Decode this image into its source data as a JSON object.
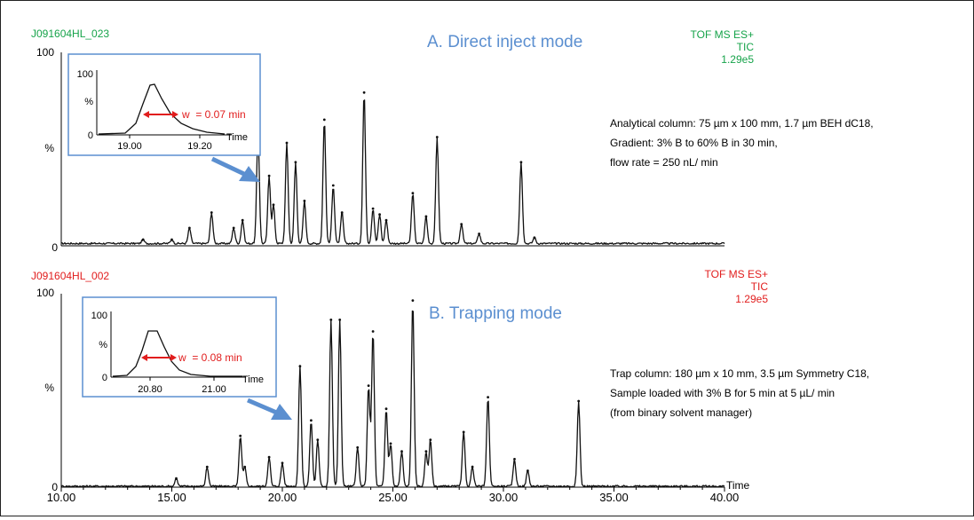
{
  "chart_data": [
    {
      "type": "line",
      "sample_id": "J091604HL_023",
      "mode_label": "A. Direct inject mode",
      "detector": [
        "TOF MS ES+",
        "TIC",
        "1.29e5"
      ],
      "header_color": "#16a34a",
      "title_color": "#5b8fd0",
      "ylabels": {
        "top": "100",
        "mid": "%",
        "zero": "0"
      },
      "conditions": [
        "Analytical column: 75 µm x 100 mm, 1.7 µm BEH dC18,",
        "Gradient: 3% B to 60% B in 30 min,",
        "flow rate = 250 nL/ min"
      ],
      "xlim": [
        10,
        40
      ],
      "ylim": [
        0,
        100
      ],
      "baseline": 1.2,
      "peaks": [
        [
          13.7,
          2
        ],
        [
          15.0,
          2
        ],
        [
          15.8,
          8
        ],
        [
          16.8,
          16
        ],
        [
          17.8,
          8
        ],
        [
          18.2,
          12
        ],
        [
          18.9,
          58
        ],
        [
          19.4,
          35
        ],
        [
          19.6,
          20
        ],
        [
          20.2,
          52
        ],
        [
          20.6,
          42
        ],
        [
          21.0,
          22
        ],
        [
          21.9,
          64
        ],
        [
          22.3,
          30
        ],
        [
          22.7,
          16
        ],
        [
          23.7,
          78
        ],
        [
          24.1,
          18
        ],
        [
          24.4,
          15
        ],
        [
          24.7,
          12
        ],
        [
          25.9,
          26
        ],
        [
          26.5,
          14
        ],
        [
          27.0,
          55
        ],
        [
          28.1,
          10
        ],
        [
          28.9,
          5
        ],
        [
          30.8,
          42
        ],
        [
          31.4,
          3
        ]
      ],
      "inset": {
        "ylabels": [
          "100",
          "%",
          "0"
        ],
        "xticks": [
          "19.00",
          "19.20"
        ],
        "xlabel": "Time",
        "width_label": "w  = 0.07 min"
      }
    },
    {
      "type": "line",
      "sample_id": "J091604HL_002",
      "mode_label": "B. Trapping mode",
      "detector": [
        "TOF MS ES+",
        "TIC",
        "1.29e5"
      ],
      "header_color": "#e11d1d",
      "title_color": "#5b8fd0",
      "ylabels": {
        "top": "100",
        "mid": "%",
        "zero": "0"
      },
      "conditions": [
        "Trap column: 180 µm x 10 mm, 3.5 µm Symmetry C18,",
        "Sample loaded with 3% B for 5 min at 5 µL/ min",
        "(from binary solvent manager)"
      ],
      "xlim": [
        10,
        40
      ],
      "ylim": [
        0,
        100
      ],
      "baseline": 0.5,
      "xticks": [
        "10.00",
        "15.00",
        "20.00",
        "25.00",
        "30.00",
        "35.00",
        "40.00"
      ],
      "xlabel": "Time",
      "peaks": [
        [
          15.2,
          4
        ],
        [
          16.6,
          10
        ],
        [
          18.1,
          26
        ],
        [
          18.3,
          10
        ],
        [
          19.4,
          15
        ],
        [
          20.0,
          12
        ],
        [
          20.8,
          62
        ],
        [
          21.3,
          34
        ],
        [
          21.6,
          24
        ],
        [
          22.2,
          86
        ],
        [
          22.6,
          86
        ],
        [
          23.4,
          20
        ],
        [
          23.9,
          52
        ],
        [
          24.1,
          80
        ],
        [
          24.7,
          40
        ],
        [
          24.9,
          22
        ],
        [
          25.4,
          18
        ],
        [
          25.9,
          96
        ],
        [
          26.5,
          18
        ],
        [
          26.7,
          24
        ],
        [
          28.2,
          28
        ],
        [
          28.6,
          10
        ],
        [
          29.3,
          46
        ],
        [
          30.5,
          14
        ],
        [
          31.1,
          8
        ],
        [
          33.4,
          44
        ]
      ],
      "inset": {
        "ylabels": [
          "100",
          "%",
          "0"
        ],
        "xticks": [
          "20.80",
          "21.00"
        ],
        "xlabel": "Time",
        "width_label": "w  = 0.08 min"
      }
    }
  ]
}
